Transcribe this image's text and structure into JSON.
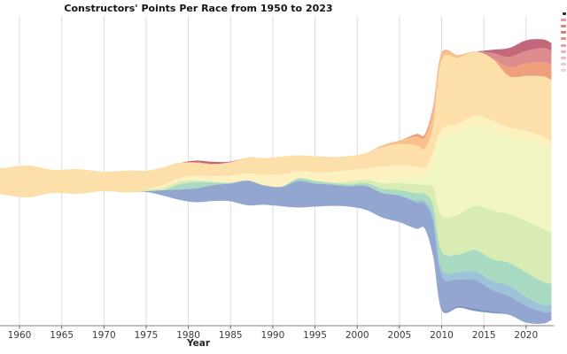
{
  "title": "Constructors' Points Per Race from 1950 to 2023",
  "x_axis": {
    "label": "Year",
    "tick_labels": [
      "1960",
      "1965",
      "1970",
      "1975",
      "1980",
      "1985",
      "1990",
      "1995",
      "2000",
      "2005",
      "2010",
      "2015",
      "2020"
    ]
  },
  "legend_cutoff": {
    "note": "legend cropped by right image edge; only small swatch slivers visible",
    "swatch_colors": [
      "#2a2a2a",
      "#e29999",
      "#db8585",
      "#d87b7b",
      "#e18f8f",
      "#e8a3a3",
      "#edb0b0",
      "#f1bcbc",
      "#f4c8c8",
      "#f8d6d6"
    ]
  },
  "chart_data": {
    "type": "area",
    "variant": "streamgraph (stacked area, centered baseline)",
    "title": "Constructors' Points Per Race from 1950 to 2023",
    "xlabel": "Year",
    "ylabel": "",
    "unit": "points per race (values estimated from plot)",
    "grid": "vertical gridlines at 5-year ticks",
    "legend_position": "right, cut off at image edge",
    "x_ticks": [
      1960,
      1965,
      1970,
      1975,
      1980,
      1985,
      1990,
      1995,
      2000,
      2005,
      2010,
      2015,
      2020
    ],
    "x_visible_range": [
      1958,
      2023
    ],
    "x": [
      1958,
      1961,
      1964,
      1967,
      1970,
      1973,
      1975,
      1977,
      1979,
      1981,
      1983,
      1985,
      1987,
      1989,
      1991,
      1993,
      1995,
      1997,
      1999,
      2001,
      2003,
      2005,
      2007,
      2008,
      2009,
      2010,
      2012,
      2014,
      2016,
      2018,
      2020,
      2022,
      2023
    ],
    "series": [
      {
        "name": "dark-rose",
        "color": "#c4677b",
        "values": [
          0,
          0,
          0,
          0,
          0,
          0,
          0,
          0,
          0,
          0.7,
          0.8,
          0.3,
          0,
          0,
          0,
          0,
          0,
          0,
          0,
          0,
          0,
          0,
          0,
          0,
          0,
          0,
          0,
          0,
          1.3,
          3.3,
          4,
          3.3,
          3
        ]
      },
      {
        "name": "rose-salmon",
        "color": "#dd8d8d",
        "values": [
          0,
          0,
          0,
          0,
          0,
          0,
          0,
          0,
          0,
          0,
          0,
          0,
          0,
          0,
          0,
          0,
          0,
          0,
          0,
          0,
          0,
          0,
          0,
          0,
          0,
          0,
          0,
          0,
          2,
          4,
          4.7,
          5.3,
          5
        ]
      },
      {
        "name": "salmon-orange",
        "color": "#ef9f7c",
        "values": [
          0,
          0,
          0,
          0,
          0,
          0,
          0,
          0,
          0,
          0,
          0,
          0,
          0,
          0,
          0,
          0,
          0,
          0,
          0,
          0,
          0,
          0,
          1,
          1.3,
          2,
          0.7,
          0,
          0,
          0,
          3.3,
          4.7,
          5.3,
          6
        ]
      },
      {
        "name": "light-orange",
        "color": "#f9c08b",
        "values": [
          0,
          0,
          0,
          0,
          0,
          0,
          0,
          0,
          0,
          0.3,
          0.3,
          0,
          0,
          0,
          0,
          0,
          0,
          0,
          0,
          0,
          0.7,
          1.3,
          3.3,
          4,
          5.3,
          2,
          1,
          0,
          0,
          0,
          0,
          0,
          0
        ]
      },
      {
        "name": "cream-apricot",
        "color": "#fcdfa9",
        "values": [
          10,
          12,
          8.7,
          9.3,
          7.3,
          8.3,
          7,
          6.7,
          5.7,
          4.7,
          4.3,
          5,
          6,
          6.3,
          6.7,
          6,
          6,
          5.7,
          5.3,
          5.7,
          7.3,
          8,
          8,
          7.3,
          10,
          26,
          25,
          24,
          23.3,
          19.3,
          20.7,
          22.7,
          23.3
        ]
      },
      {
        "name": "pale-yellow",
        "color": "#fdf1c0",
        "values": [
          0,
          0,
          0,
          0,
          0,
          0,
          0,
          1,
          1.3,
          1.7,
          2,
          2.7,
          2.7,
          4,
          4.7,
          2.7,
          3.3,
          4,
          4.3,
          4.3,
          5,
          4.7,
          4,
          3.3,
          3.3,
          3.3,
          3.3,
          4,
          3.3,
          3.3,
          3.3,
          2.7,
          2.7
        ]
      },
      {
        "name": "pale-yellow-green",
        "color": "#f1f6c3",
        "values": [
          0,
          0,
          0,
          0,
          0,
          0,
          0,
          0,
          0,
          0,
          0,
          0,
          0,
          0,
          0,
          0,
          0,
          0,
          0,
          0,
          1.3,
          2,
          2.7,
          3.3,
          10,
          29.3,
          30.7,
          30,
          30.7,
          29.3,
          30.7,
          32,
          31.3
        ]
      },
      {
        "name": "light-green",
        "color": "#d8ecb4",
        "values": [
          0,
          0,
          0,
          0,
          0,
          0,
          0.7,
          1,
          1,
          0.7,
          0.3,
          0,
          0,
          0,
          0,
          0,
          0,
          0,
          1,
          1.3,
          2,
          2.7,
          3.3,
          3.3,
          6.7,
          13.3,
          15,
          16.7,
          18.3,
          18.3,
          19.3,
          20,
          19.3
        ]
      },
      {
        "name": "teal-green",
        "color": "#a9dbc2",
        "values": [
          0,
          0,
          0,
          0,
          0,
          0,
          0,
          0,
          2,
          2.3,
          1,
          0.3,
          0,
          0,
          0,
          1,
          1,
          0.7,
          0.7,
          1,
          1.7,
          2,
          2.7,
          2.7,
          4,
          6.7,
          6.7,
          8,
          8.3,
          8.7,
          9.3,
          8.7,
          8
        ]
      },
      {
        "name": "light-blue",
        "color": "#9cc3d8",
        "values": [
          0,
          0,
          0,
          0,
          0,
          0,
          0,
          0,
          0,
          0,
          0,
          0,
          0,
          0,
          0,
          0,
          0,
          0,
          0,
          0,
          0,
          0,
          0.7,
          1,
          2,
          2.7,
          2.7,
          3.3,
          3.3,
          4,
          3.3,
          2.7,
          2.7
        ]
      },
      {
        "name": "periwinkle",
        "color": "#93a6d0",
        "values": [
          0,
          0,
          0,
          0,
          0,
          0,
          0.3,
          2,
          4,
          5.3,
          6,
          6.7,
          9.3,
          7.3,
          7.3,
          10,
          8.7,
          8,
          7.7,
          9,
          9.3,
          10,
          10,
          9.3,
          13.3,
          12,
          10,
          10.7,
          8,
          6.7,
          6,
          4,
          2.7
        ]
      },
      {
        "name": "dark-periwinkle",
        "color": "#7e93c5",
        "values": [
          0,
          0,
          0,
          0,
          0,
          0,
          0,
          0,
          0,
          0,
          0,
          0,
          0,
          0,
          0,
          0,
          0,
          0,
          0,
          0,
          0,
          0,
          0,
          0,
          0,
          0.7,
          0.7,
          1,
          0.7,
          0.3,
          0.3,
          0.3,
          0.3
        ]
      }
    ],
    "style": {
      "background": "#ffffff",
      "gridline_color": "#dcdcdc",
      "axis_line_color": "#808080",
      "tick_color": "#666666",
      "tick_label_color": "#3a3a3a",
      "title_color": "#141414"
    }
  }
}
